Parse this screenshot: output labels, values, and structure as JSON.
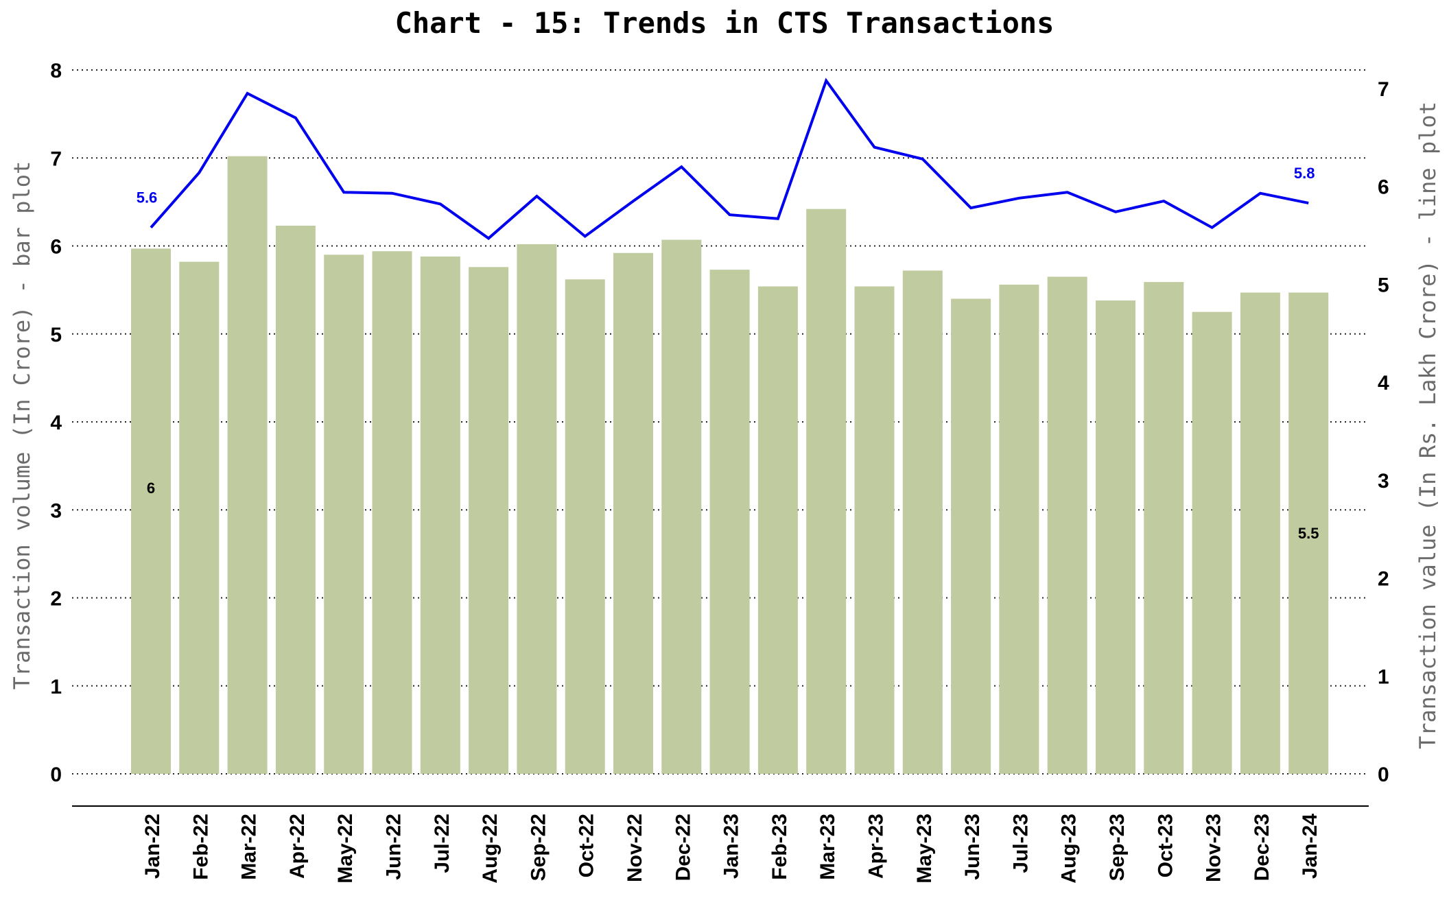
{
  "chart_data": {
    "type": "bar",
    "title": "Chart - 15: Trends in CTS Transactions",
    "ylabel": "Transaction volume (In Crore) - bar plot",
    "y2label": "Transaction value (In Rs. Lakh Crore) - line plot",
    "ylim": [
      0,
      8
    ],
    "y2lim": [
      0,
      7
    ],
    "yticks": [
      "0",
      "1",
      "2",
      "3",
      "4",
      "5",
      "6",
      "7",
      "8"
    ],
    "y2ticks": [
      "0",
      "1",
      "2",
      "3",
      "4",
      "5",
      "6",
      "7"
    ],
    "grid": "horizontal dotted",
    "categories": [
      "Jan-22",
      "Feb-22",
      "Mar-22",
      "Apr-22",
      "May-22",
      "Jun-22",
      "Jul-22",
      "Aug-22",
      "Sep-22",
      "Oct-22",
      "Nov-22",
      "Dec-22",
      "Jan-23",
      "Feb-23",
      "Mar-23",
      "Apr-23",
      "May-23",
      "Jun-23",
      "Jul-23",
      "Aug-23",
      "Sep-23",
      "Oct-23",
      "Nov-23",
      "Dec-23",
      "Jan-24"
    ],
    "series": [
      {
        "type": "bar",
        "axis": "left",
        "color": "#c0cba0",
        "values": [
          5.97,
          5.82,
          7.02,
          6.23,
          5.9,
          5.94,
          5.88,
          5.76,
          6.02,
          5.62,
          5.92,
          6.07,
          5.73,
          5.54,
          6.42,
          5.54,
          5.72,
          5.4,
          5.56,
          5.65,
          5.38,
          5.59,
          5.25,
          5.47,
          5.47
        ]
      },
      {
        "type": "line",
        "axis": "right",
        "color": "#0000ee",
        "values": [
          5.58,
          6.14,
          6.95,
          6.7,
          5.94,
          5.93,
          5.82,
          5.47,
          5.9,
          5.49,
          5.85,
          6.2,
          5.71,
          5.67,
          7.08,
          6.4,
          6.28,
          5.78,
          5.88,
          5.94,
          5.74,
          5.85,
          5.58,
          5.93,
          5.83
        ]
      }
    ],
    "data_labels": [
      {
        "series": 0,
        "category": "Jan-22",
        "text": "6"
      },
      {
        "series": 0,
        "category": "Jan-24",
        "text": "5.5"
      },
      {
        "series": 1,
        "category": "Jan-22",
        "text": "5.6"
      },
      {
        "series": 1,
        "category": "Jan-24",
        "text": "5.8"
      }
    ]
  }
}
